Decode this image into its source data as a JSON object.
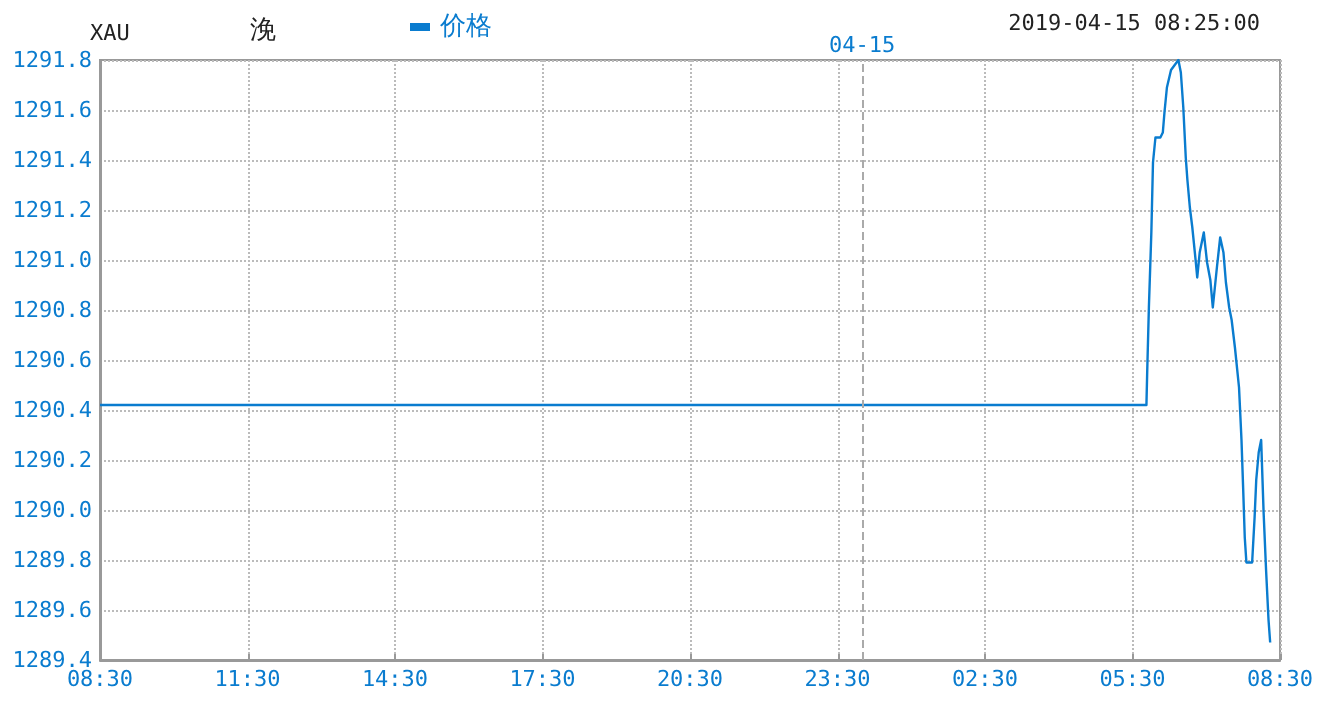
{
  "chart_data": {
    "type": "line",
    "title": "XAU",
    "subtitle": "浼",
    "annotations": [
      "2019-04-15 08:25:00"
    ],
    "legend": "top",
    "grid": true,
    "marker": "none",
    "line_style": "solid",
    "xlim": [
      "2019-04-14T08:30",
      "2019-04-15T08:30"
    ],
    "xticks": [
      {
        "value": "2019-04-14T08:30",
        "label": "08:30"
      },
      {
        "value": "2019-04-14T11:30",
        "label": "11:30"
      },
      {
        "value": "2019-04-14T14:30",
        "label": "14:30"
      },
      {
        "value": "2019-04-14T17:30",
        "label": "17:30"
      },
      {
        "value": "2019-04-14T20:30",
        "label": "20:30"
      },
      {
        "value": "2019-04-14T23:30",
        "label": "23:30"
      },
      {
        "value": "2019-04-15T02:30",
        "label": "02:30"
      },
      {
        "value": "2019-04-15T05:30",
        "label": "05:30"
      },
      {
        "value": "2019-04-15T08:30",
        "label": "08:30"
      }
    ],
    "ylim": [
      1289.4,
      1291.8
    ],
    "yticks": [
      {
        "value": 1289.4,
        "label": "1289.4"
      },
      {
        "value": 1289.6,
        "label": "1289.6"
      },
      {
        "value": 1289.8,
        "label": "1289.8"
      },
      {
        "value": 1290.0,
        "label": "1290.0"
      },
      {
        "value": 1290.2,
        "label": "1290.2"
      },
      {
        "value": 1290.4,
        "label": "1290.4"
      },
      {
        "value": 1290.6,
        "label": "1290.6"
      },
      {
        "value": 1290.8,
        "label": "1290.8"
      },
      {
        "value": 1291.0,
        "label": "1291.0"
      },
      {
        "value": 1291.2,
        "label": "1291.2"
      },
      {
        "value": 1291.4,
        "label": "1291.4"
      },
      {
        "value": 1291.6,
        "label": "1291.6"
      },
      {
        "value": 1291.8,
        "label": "1291.8"
      }
    ],
    "ref_lines": [
      {
        "axis": "x",
        "value": "2019-04-15T00:00",
        "label": "04-15",
        "color": "#aaaaaa",
        "line_style": "dashed"
      }
    ],
    "series": [
      {
        "name": "价格",
        "color": "#0a7ccf",
        "x": [
          "2019-04-14T08:30",
          "2019-04-15T05:47",
          "2019-04-15T05:48",
          "2019-04-15T05:50",
          "2019-04-15T05:53",
          "2019-04-15T05:55",
          "2019-04-15T05:58",
          "2019-04-15T06:04",
          "2019-04-15T06:07",
          "2019-04-15T06:09",
          "2019-04-15T06:12",
          "2019-04-15T06:17",
          "2019-04-15T06:26",
          "2019-04-15T06:29",
          "2019-04-15T06:32",
          "2019-04-15T06:35",
          "2019-04-15T06:37",
          "2019-04-15T06:40",
          "2019-04-15T06:43",
          "2019-04-15T06:47",
          "2019-04-15T06:49",
          "2019-04-15T06:52",
          "2019-04-15T06:57",
          "2019-04-15T07:01",
          "2019-04-15T07:05",
          "2019-04-15T07:08",
          "2019-04-15T07:13",
          "2019-04-15T07:17",
          "2019-04-15T07:21",
          "2019-04-15T07:24",
          "2019-04-15T07:28",
          "2019-04-15T07:31",
          "2019-04-15T07:35",
          "2019-04-15T07:40",
          "2019-04-15T07:43",
          "2019-04-15T07:45",
          "2019-04-15T07:47",
          "2019-04-15T07:49",
          "2019-04-15T07:56",
          "2019-04-15T07:59",
          "2019-04-15T08:01",
          "2019-04-15T08:04",
          "2019-04-15T08:07",
          "2019-04-15T08:10",
          "2019-04-15T08:13",
          "2019-04-15T08:16",
          "2019-04-15T08:18"
        ],
        "values": [
          1290.42,
          1290.42,
          1290.56,
          1290.81,
          1291.11,
          1291.39,
          1291.49,
          1291.49,
          1291.51,
          1291.59,
          1291.69,
          1291.76,
          1291.8,
          1291.75,
          1291.61,
          1291.41,
          1291.32,
          1291.21,
          1291.13,
          1291.0,
          1290.93,
          1291.03,
          1291.11,
          1290.99,
          1290.92,
          1290.81,
          1290.97,
          1291.09,
          1291.03,
          1290.91,
          1290.81,
          1290.76,
          1290.65,
          1290.49,
          1290.28,
          1290.09,
          1289.89,
          1289.79,
          1289.79,
          1289.97,
          1290.12,
          1290.23,
          1290.28,
          1289.99,
          1289.76,
          1289.56,
          1289.47
        ]
      }
    ]
  }
}
